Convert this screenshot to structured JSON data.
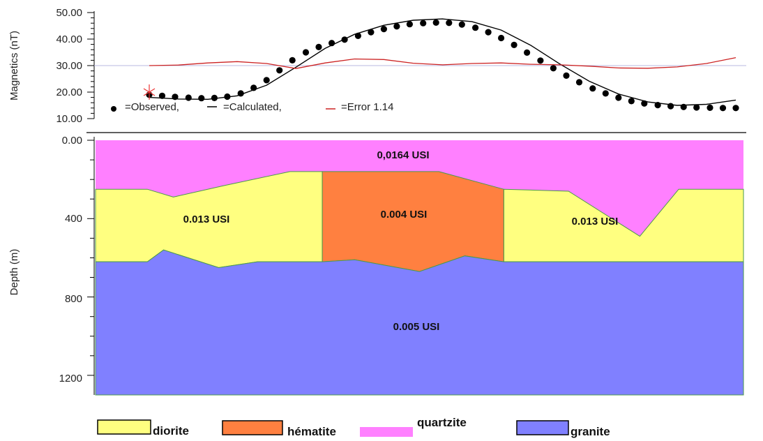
{
  "chart_data": [
    {
      "type": "scatter",
      "ylabel": "Magnetics (nT)",
      "ylim": [
        10,
        50
      ],
      "yticks": [
        "10.00",
        "20.00",
        "30.00",
        "40.00",
        "50.00"
      ],
      "xlim": [
        0,
        100
      ],
      "grid": "horizontal line at 30",
      "legend": {
        "placement": "bottom-left",
        "observed": "=Observed,",
        "calculated": "=Calculated,",
        "error": "=Error 1.14"
      },
      "series": [
        {
          "name": "=Observed,",
          "style": "dots",
          "color": "#000000",
          "x": [
            0,
            2.2,
            4.4,
            6.7,
            8.9,
            11.1,
            13.3,
            15.6,
            17.8,
            20,
            22.2,
            24.4,
            26.7,
            28.9,
            31.1,
            33.3,
            35.6,
            37.8,
            40,
            42.2,
            44.4,
            46.7,
            48.9,
            51.1,
            53.3,
            55.6,
            57.8,
            60,
            62.2,
            64.4,
            66.7,
            68.9,
            71.1,
            73.3,
            75.6,
            77.8,
            80,
            82.2,
            84.4,
            86.7,
            88.9,
            91.1,
            93.3,
            95.6,
            97.8,
            100
          ],
          "y": [
            19,
            18.6,
            18.2,
            17.9,
            17.7,
            17.8,
            18.3,
            19.5,
            21.6,
            24.5,
            28.2,
            32,
            35,
            37,
            38.5,
            39.8,
            41.2,
            42.6,
            43.8,
            44.8,
            45.6,
            46,
            46.2,
            46.1,
            45.5,
            44.3,
            42.6,
            40.4,
            37.8,
            34.9,
            31.9,
            29,
            26.2,
            23.7,
            21.4,
            19.5,
            17.9,
            16.6,
            15.7,
            15.1,
            14.7,
            14.4,
            14.2,
            14.1,
            14,
            14
          ]
        },
        {
          "name": "=Calculated,",
          "style": "line",
          "color": "#000000",
          "x": [
            0,
            5,
            10,
            15,
            20,
            25,
            30,
            35,
            40,
            45,
            50,
            55,
            60,
            65,
            70,
            75,
            80,
            85,
            90,
            95,
            100
          ],
          "y": [
            18,
            17.4,
            17.3,
            18.6,
            22.6,
            29.4,
            36.5,
            41.8,
            45.2,
            47.1,
            47.6,
            46.6,
            43.4,
            37.7,
            30.6,
            24.1,
            19.3,
            16.3,
            15,
            15.4,
            17
          ]
        },
        {
          "name": "=Error 1.14",
          "style": "line",
          "color": "#cc2222",
          "x": [
            0,
            5,
            10,
            15,
            20,
            25,
            30,
            35,
            40,
            45,
            50,
            55,
            60,
            65,
            70,
            75,
            80,
            85,
            90,
            95,
            100
          ],
          "y": [
            30,
            30.2,
            31,
            31.5,
            30.8,
            28.9,
            31,
            32.5,
            32.3,
            30.9,
            30.3,
            30.8,
            31,
            30.5,
            30.3,
            29.8,
            29.1,
            29,
            29.5,
            30.8,
            33
          ]
        }
      ]
    },
    {
      "type": "area",
      "ylabel": "Depth (m)",
      "ylim": [
        1300,
        0
      ],
      "yticks": [
        "0.00",
        "400",
        "800",
        "1200"
      ],
      "xlim": [
        0,
        100
      ],
      "units": [
        {
          "name": "quartzite",
          "value_label": "0,0164  USI",
          "color": "#ff80ff"
        },
        {
          "name": "diorite",
          "value_label": "0.013 USI",
          "color": "#ffff80"
        },
        {
          "name": "hématite",
          "value_label": "0.004 USI",
          "color": "#ff8040"
        },
        {
          "name": "diorite",
          "value_label": "0.013 USI",
          "color": "#ffff80"
        },
        {
          "name": "granite",
          "value_label": "0.005 USI",
          "color": "#8080ff"
        }
      ],
      "boundaries": {
        "quartzite_base": {
          "x": [
            0,
            8,
            12,
            20,
            30,
            35,
            53,
            63,
            73,
            84,
            90,
            100
          ],
          "y": [
            250,
            250,
            290,
            230,
            160,
            160,
            160,
            250,
            260,
            490,
            250,
            250
          ]
        },
        "granite_top": {
          "x": [
            0,
            8,
            10.5,
            19,
            25,
            35,
            40,
            50,
            57,
            63,
            100
          ],
          "y": [
            620,
            620,
            560,
            650,
            620,
            620,
            610,
            670,
            590,
            620,
            620
          ]
        }
      },
      "legend": [
        "diorite",
        "hématite",
        "quartzite",
        "granite"
      ]
    }
  ]
}
